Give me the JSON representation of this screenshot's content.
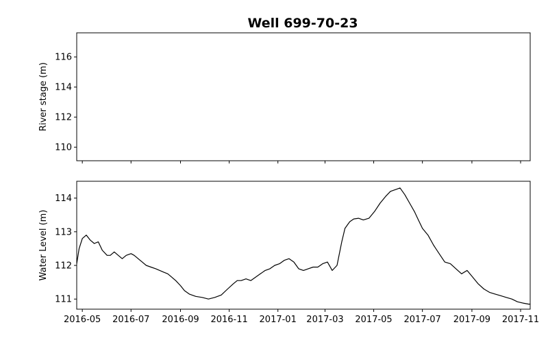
{
  "chart_data": {
    "title": "Well 699-70-23",
    "x_tick_labels": [
      "2016-05",
      "2016-07",
      "2016-09",
      "2016-11",
      "2017-01",
      "2017-03",
      "2017-05",
      "2017-07",
      "2017-09",
      "2017-11"
    ],
    "x_ticks": [
      "2016-05-01",
      "2016-07-01",
      "2016-09-01",
      "2016-11-01",
      "2017-01-01",
      "2017-03-01",
      "2017-05-01",
      "2017-07-01",
      "2017-09-01",
      "2017-11-01"
    ],
    "xlim": [
      "2016-04-24",
      "2017-11-13"
    ],
    "panels": [
      {
        "type": "line",
        "ylabel": "River stage (m)",
        "ylim": [
          109.1,
          117.6
        ],
        "yticks": [
          110,
          112,
          114,
          116
        ],
        "series": []
      },
      {
        "type": "line",
        "ylabel": "Water Level (m)",
        "ylim": [
          110.7,
          114.5
        ],
        "yticks": [
          111,
          112,
          113,
          114
        ],
        "series": [
          {
            "color": "#000000",
            "x": [
              "2016-04-24",
              "2016-04-27",
              "2016-05-01",
              "2016-05-06",
              "2016-05-11",
              "2016-05-16",
              "2016-05-21",
              "2016-05-26",
              "2016-06-01",
              "2016-06-05",
              "2016-06-10",
              "2016-06-15",
              "2016-06-20",
              "2016-06-25",
              "2016-07-01",
              "2016-07-05",
              "2016-07-10",
              "2016-07-15",
              "2016-07-20",
              "2016-07-26",
              "2016-08-01",
              "2016-08-06",
              "2016-08-11",
              "2016-08-16",
              "2016-08-21",
              "2016-08-26",
              "2016-09-01",
              "2016-09-06",
              "2016-09-12",
              "2016-09-20",
              "2016-09-28",
              "2016-10-06",
              "2016-10-14",
              "2016-10-22",
              "2016-10-30",
              "2016-11-06",
              "2016-11-11",
              "2016-11-16",
              "2016-11-22",
              "2016-11-28",
              "2016-12-04",
              "2016-12-10",
              "2016-12-16",
              "2016-12-22",
              "2016-12-28",
              "2017-01-03",
              "2017-01-09",
              "2017-01-15",
              "2017-01-21",
              "2017-01-27",
              "2017-02-02",
              "2017-02-08",
              "2017-02-14",
              "2017-02-20",
              "2017-02-26",
              "2017-03-04",
              "2017-03-10",
              "2017-03-16",
              "2017-03-22",
              "2017-03-26",
              "2017-04-01",
              "2017-04-06",
              "2017-04-12",
              "2017-04-18",
              "2017-04-25",
              "2017-05-02",
              "2017-05-09",
              "2017-05-16",
              "2017-05-22",
              "2017-05-28",
              "2017-06-03",
              "2017-06-09",
              "2017-06-15",
              "2017-06-21",
              "2017-06-26",
              "2017-07-01",
              "2017-07-08",
              "2017-07-15",
              "2017-07-22",
              "2017-07-29",
              "2017-08-05",
              "2017-08-12",
              "2017-08-19",
              "2017-08-26",
              "2017-09-02",
              "2017-09-09",
              "2017-09-16",
              "2017-09-23",
              "2017-09-30",
              "2017-10-07",
              "2017-10-14",
              "2017-10-21",
              "2017-10-28",
              "2017-11-04",
              "2017-11-11",
              "2017-11-13"
            ],
            "y": [
              112.05,
              112.5,
              112.8,
              112.9,
              112.75,
              112.65,
              112.7,
              112.45,
              112.3,
              112.3,
              112.4,
              112.3,
              112.2,
              112.3,
              112.35,
              112.3,
              112.2,
              112.1,
              112.0,
              111.95,
              111.9,
              111.85,
              111.8,
              111.75,
              111.65,
              111.55,
              111.4,
              111.25,
              111.15,
              111.08,
              111.05,
              111.0,
              111.05,
              111.12,
              111.3,
              111.45,
              111.55,
              111.55,
              111.6,
              111.55,
              111.65,
              111.75,
              111.85,
              111.9,
              112.0,
              112.05,
              112.15,
              112.2,
              112.1,
              111.9,
              111.85,
              111.9,
              111.95,
              111.95,
              112.05,
              112.1,
              111.85,
              112.0,
              112.7,
              113.1,
              113.3,
              113.38,
              113.4,
              113.35,
              113.4,
              113.6,
              113.85,
              114.05,
              114.2,
              114.25,
              114.3,
              114.1,
              113.85,
              113.6,
              113.35,
              113.1,
              112.9,
              112.6,
              112.35,
              112.1,
              112.05,
              111.9,
              111.75,
              111.85,
              111.65,
              111.45,
              111.3,
              111.2,
              111.15,
              111.1,
              111.05,
              111.0,
              110.92,
              110.88,
              110.85,
              110.85
            ]
          }
        ]
      }
    ]
  }
}
